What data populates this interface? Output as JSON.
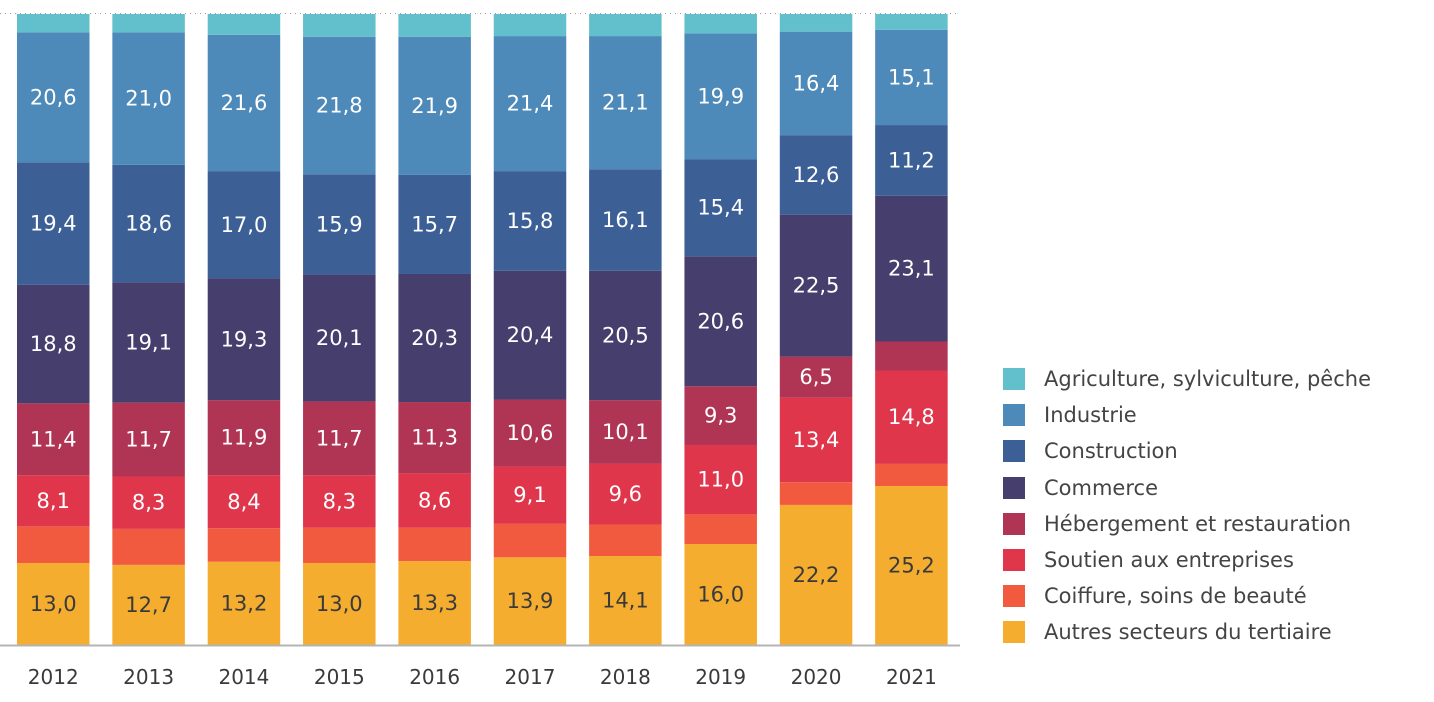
{
  "chart_data": {
    "type": "bar",
    "stacked": true,
    "title": "",
    "xlabel": "",
    "ylabel": "",
    "ylim": [
      0,
      100
    ],
    "grid": false,
    "legend_position": "right",
    "categories": [
      "2012",
      "2013",
      "2014",
      "2015",
      "2016",
      "2017",
      "2018",
      "2019",
      "2020",
      "2021"
    ],
    "series": [
      {
        "name": "Autres secteurs du tertiaire",
        "color": "#f4ad2f",
        "label_color": "#3a3a3a",
        "show_labels": true,
        "values": [
          13.0,
          12.7,
          13.2,
          13.0,
          13.3,
          13.9,
          14.1,
          16.0,
          22.2,
          25.2
        ]
      },
      {
        "name": "Coiffure, soins de beauté",
        "color": "#f25a40",
        "label_color": "#ffffff",
        "show_labels": false,
        "values": [
          5.8,
          5.7,
          5.3,
          5.6,
          5.3,
          5.3,
          5.0,
          4.7,
          3.6,
          3.5
        ]
      },
      {
        "name": "Soutien aux entreprises",
        "color": "#df364c",
        "label_color": "#ffffff",
        "show_labels": true,
        "values": [
          8.1,
          8.3,
          8.4,
          8.3,
          8.6,
          9.1,
          9.6,
          11.0,
          13.4,
          14.8
        ]
      },
      {
        "name": "Hébergement et restauration",
        "color": "#b03453",
        "label_color": "#ffffff",
        "show_labels": true,
        "values": [
          11.4,
          11.7,
          11.9,
          11.7,
          11.3,
          10.6,
          10.1,
          9.3,
          6.5,
          4.6
        ],
        "hidden_labels": [
          9
        ]
      },
      {
        "name": "Commerce",
        "color": "#463e6c",
        "label_color": "#ffffff",
        "show_labels": true,
        "values": [
          18.8,
          19.1,
          19.3,
          20.1,
          20.3,
          20.4,
          20.5,
          20.6,
          22.5,
          23.1
        ]
      },
      {
        "name": "Construction",
        "color": "#3c5f96",
        "label_color": "#ffffff",
        "show_labels": true,
        "values": [
          19.4,
          18.6,
          17.0,
          15.9,
          15.7,
          15.8,
          16.1,
          15.4,
          12.6,
          11.2
        ]
      },
      {
        "name": "Industrie",
        "color": "#4d8ab9",
        "label_color": "#ffffff",
        "show_labels": true,
        "values": [
          20.6,
          21.0,
          21.6,
          21.8,
          21.9,
          21.4,
          21.1,
          19.9,
          16.4,
          15.1
        ]
      },
      {
        "name": "Agriculture, sylviculture, pêche",
        "color": "#62bfcc",
        "label_color": "#ffffff",
        "show_labels": false,
        "values": [
          2.9,
          2.9,
          3.3,
          3.6,
          3.6,
          3.5,
          3.5,
          3.1,
          2.8,
          2.5
        ]
      }
    ],
    "decimal_separator": ","
  },
  "legend": {
    "items": [
      {
        "label": "Agriculture, sylviculture, pêche",
        "color": "#62bfcc"
      },
      {
        "label": "Industrie",
        "color": "#4d8ab9"
      },
      {
        "label": "Construction",
        "color": "#3c5f96"
      },
      {
        "label": "Commerce",
        "color": "#463e6c"
      },
      {
        "label": "Hébergement et restauration",
        "color": "#b03453"
      },
      {
        "label": "Soutien aux entreprises",
        "color": "#df364c"
      },
      {
        "label": "Coiffure, soins de beauté",
        "color": "#f25a40"
      },
      {
        "label": "Autres secteurs du tertiaire",
        "color": "#f4ad2f"
      }
    ]
  }
}
